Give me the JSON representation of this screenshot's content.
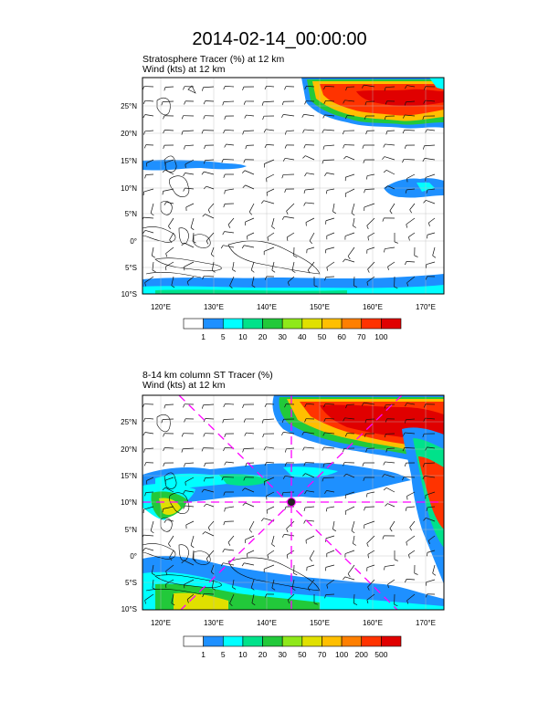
{
  "page": {
    "title": "2014-02-14_00:00:00"
  },
  "panels": [
    {
      "id": "top",
      "title_line1": "Stratosphere Tracer   (%)     at   12 km",
      "title_line2": "Wind   (kts)     at   12 km",
      "lat_labels": [
        "25°N",
        "20°N",
        "15°N",
        "10°N",
        "5°N",
        "0°",
        "5°S",
        "10°S"
      ],
      "lon_labels": [
        "120°E",
        "130°E",
        "140°E",
        "150°E",
        "160°E",
        "170°E"
      ],
      "colorbar_labels": [
        "1",
        "5",
        "10",
        "20",
        "30",
        "40",
        "50",
        "60",
        "70",
        "100"
      ],
      "colorbar_colors": [
        "#ffffff",
        "#1e90ff",
        "#00ffff",
        "#00e28a",
        "#22c93a",
        "#8fe81a",
        "#e0e000",
        "#ffbf00",
        "#ff7f00",
        "#ff3300",
        "#e00000"
      ]
    },
    {
      "id": "bottom",
      "title_line1": "8-14 km column ST Tracer    (%)",
      "title_line2": "Wind   (kts)     at   12 km",
      "lat_labels": [
        "25°N",
        "20°N",
        "15°N",
        "10°N",
        "5°N",
        "0°",
        "5°S",
        "10°S"
      ],
      "lon_labels": [
        "120°E",
        "130°E",
        "140°E",
        "150°E",
        "160°E",
        "170°E"
      ],
      "colorbar_labels": [
        "1",
        "5",
        "10",
        "20",
        "30",
        "50",
        "70",
        "100",
        "200",
        "500"
      ],
      "colorbar_colors": [
        "#ffffff",
        "#1e90ff",
        "#00ffff",
        "#00e28a",
        "#22c93a",
        "#8fe81a",
        "#e0e000",
        "#ffbf00",
        "#ff7f00",
        "#ff3300",
        "#e00000"
      ]
    }
  ],
  "map_extent": {
    "lon_min": 115,
    "lon_max": 173,
    "lat_min": -10.5,
    "lat_max": 29
  },
  "radar_center": {
    "lon": 145.5,
    "lat": 10
  }
}
